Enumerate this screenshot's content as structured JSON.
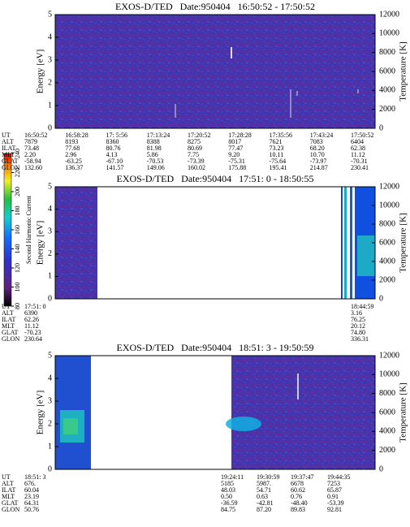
{
  "chart_data": [
    {
      "type": "spectrogram",
      "title": "EXOS-D/TED   Date:950404   16:50:52 - 17:50:52",
      "ylabel": "Energy [eV]",
      "y2label": "Temperature [K]",
      "ylim": [
        0,
        5
      ],
      "yticks": [
        0,
        1,
        2,
        3,
        4,
        5
      ],
      "y2lim": [
        0,
        12000
      ],
      "y2ticks": [
        0,
        2000,
        4000,
        6000,
        8000,
        10000,
        12000
      ],
      "ephemeris": {
        "labels": [
          "UT",
          "ALT",
          "ILAT",
          "MLT",
          "GLAT",
          "GLON"
        ],
        "columns": [
          [
            "16:50:52",
            "7879",
            "73.48",
            "2.20",
            "-58.94",
            "132.60"
          ],
          [
            "16:58:28",
            "8193",
            "77.68",
            "2.96",
            "-63.25",
            "136.37"
          ],
          [
            "17: 5:56",
            "8360",
            "80.76",
            "4.13",
            "-67.10",
            "141.57"
          ],
          [
            "17:13:24",
            "8388",
            "81.98",
            "5.86",
            "-70.53",
            "149.06"
          ],
          [
            "17:20:52",
            "8275",
            "80.69",
            "7.75",
            "-73.39",
            "160.02"
          ],
          [
            "17:28:28",
            "8017",
            "77.47",
            "9.20",
            "-75.31",
            "175.88"
          ],
          [
            "17:35:56",
            "7621",
            "73.23",
            "10.11",
            "-75.64",
            "195.41"
          ],
          [
            "17:43:24",
            "7083",
            "68.20",
            "10.70",
            "-73.97",
            "214.87"
          ],
          [
            "17:50:52",
            "6404",
            "62.38",
            "11.12",
            "-70.31",
            "230.41"
          ]
        ]
      }
    },
    {
      "type": "spectrogram",
      "title": "EXOS-D/TED   Date:950404   17:51: 0 - 18:50:55",
      "ylabel": "Energy [eV]",
      "y2label": "Temperature [K]",
      "ylim": [
        0,
        5
      ],
      "yticks": [
        0,
        1,
        2,
        3,
        4,
        5
      ],
      "y2lim": [
        0,
        12000
      ],
      "y2ticks": [
        0,
        2000,
        4000,
        6000,
        8000,
        10000,
        12000
      ],
      "colorbar": {
        "label": "Second Harmonic Current",
        "lim": [
          80,
          240
        ],
        "ticks": [
          80,
          100,
          120,
          140,
          160,
          180,
          200,
          220,
          240
        ]
      },
      "ephemeris": {
        "labels": [
          "UT",
          "ALT",
          "ILAT",
          "MLT",
          "GLAT",
          "GLON"
        ],
        "columns": [
          [
            "17:51: 0",
            "6390",
            "62.26",
            "11.12",
            "-70.23",
            "230.64"
          ],
          [
            "18:44:59",
            "3.16",
            "76.25",
            "20.12",
            "74.80",
            "336.31"
          ]
        ]
      }
    },
    {
      "type": "spectrogram",
      "title": "EXOS-D/TED   Date:950404   18:51: 3 - 19:50:59",
      "ylabel": "Energy [eV]",
      "y2label": "Temperature [K]",
      "ylim": [
        0,
        5
      ],
      "yticks": [
        0,
        1,
        2,
        3,
        4,
        5
      ],
      "y2lim": [
        0,
        12000
      ],
      "y2ticks": [
        0,
        2000,
        4000,
        6000,
        8000,
        10000,
        12000
      ],
      "ephemeris": {
        "labels": [
          "UT",
          "ALT",
          "ILAT",
          "MLT",
          "GLAT",
          "GLON"
        ],
        "columns": [
          [
            "18:51: 3",
            "676.",
            "60.04",
            "23.19",
            "64.31",
            "50.76"
          ],
          [
            "19:24:11",
            "5185",
            "48.03",
            "0.50",
            "-36.59",
            "84.75"
          ],
          [
            "19:30:59",
            "5987.",
            "54.71",
            "0.63",
            "-42.81",
            "87.20"
          ],
          [
            "19:37:47",
            "6678",
            "60.62",
            "0.76",
            "-48.40",
            "89.83"
          ],
          [
            "19:44:35",
            "7253",
            "65.87",
            "0.91",
            "-53.39",
            "92.81"
          ]
        ]
      }
    }
  ]
}
